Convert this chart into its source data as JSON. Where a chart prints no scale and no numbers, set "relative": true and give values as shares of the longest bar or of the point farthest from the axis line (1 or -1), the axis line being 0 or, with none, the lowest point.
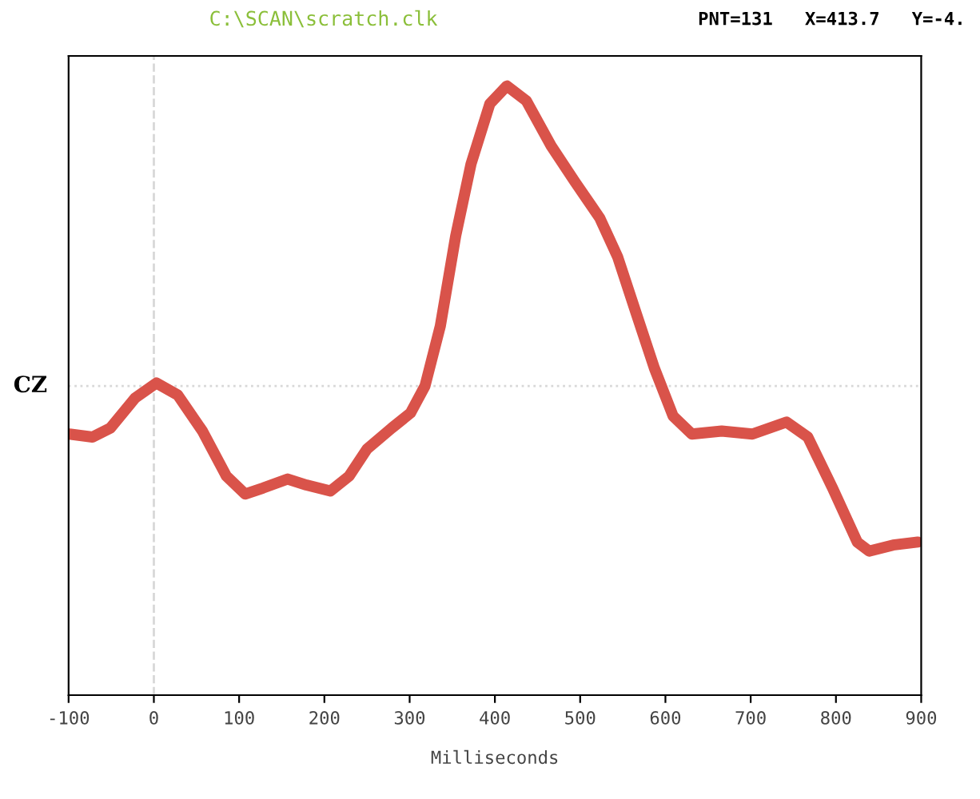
{
  "chart_data": {
    "type": "line",
    "title": "C:\\SCAN\\scratch.clk",
    "xlabel": "Milliseconds",
    "annotations": [
      "PNT=131   X=413.7   Y=-4."
    ],
    "relative": true,
    "x": [
      -99,
      -72,
      -51,
      -22,
      3,
      28,
      57,
      85,
      107,
      128,
      157,
      179,
      207,
      229,
      250,
      279,
      301,
      318,
      336,
      354,
      372,
      394,
      414,
      437,
      466,
      494,
      523,
      544,
      566,
      587,
      609,
      631,
      666,
      702,
      742,
      767,
      796,
      825,
      839,
      867,
      896
    ],
    "series": [
      {
        "color": "#d9534a",
        "values": [
          -0.16,
          -0.17,
          -0.14,
          -0.04,
          0.01,
          -0.03,
          -0.15,
          -0.3,
          -0.36,
          -0.34,
          -0.31,
          -0.33,
          -0.35,
          -0.3,
          -0.21,
          -0.14,
          -0.09,
          0.0,
          0.2,
          0.5,
          0.74,
          0.94,
          1.0,
          0.95,
          0.8,
          0.68,
          0.56,
          0.43,
          0.24,
          0.06,
          -0.1,
          -0.16,
          -0.15,
          -0.16,
          -0.12,
          -0.17,
          -0.34,
          -0.52,
          -0.55,
          -0.53,
          -0.52
        ]
      }
    ],
    "xlim": [
      -100,
      900
    ],
    "xticks": [
      -100,
      0,
      100,
      200,
      300,
      400,
      500,
      600,
      700,
      800,
      900
    ],
    "ref_lines": [
      {
        "axis": "y",
        "value": 0,
        "label": "CZ",
        "color": "#d8d8d8",
        "line_style": "dotted"
      },
      {
        "axis": "x",
        "value": 0,
        "color": "#d8d8d8",
        "line_style": "dashed"
      }
    ],
    "grid": false,
    "legend": false,
    "marker": "none",
    "line_style": "solid"
  }
}
